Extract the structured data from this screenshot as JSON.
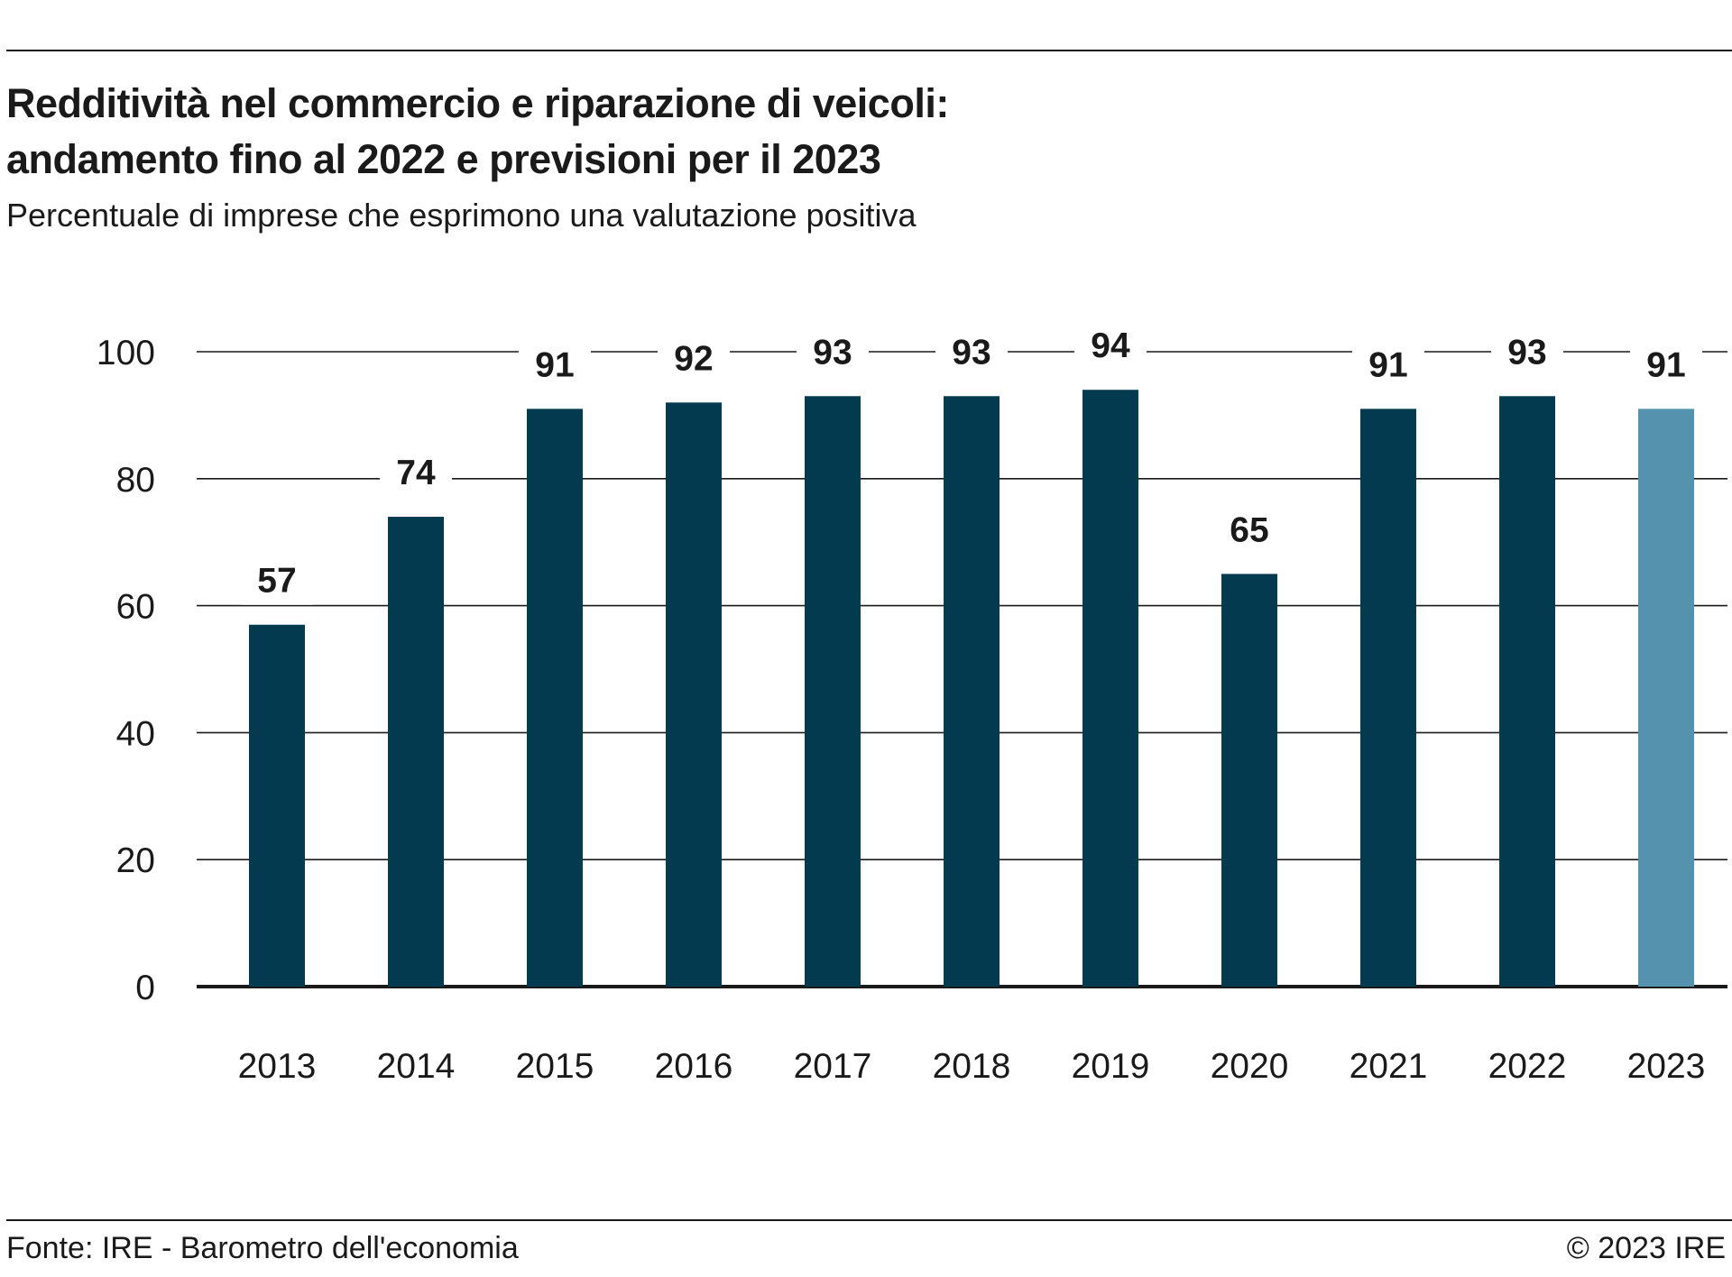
{
  "header": {
    "title_line1": "Redditività nel commercio e riparazione di veicoli:",
    "title_line2": "andamento fino al 2022 e previsioni per il 2023",
    "subtitle": "Percentuale di imprese che esprimono una valutazione positiva"
  },
  "footer": {
    "source": "Fonte: IRE - Barometro dell'economia",
    "copyright": "© 2023 IRE"
  },
  "colors": {
    "bar": "#033a50",
    "bar_forecast": "#5592ad",
    "text": "#1a1a1a",
    "grid": "#1a1a1a"
  },
  "chart_data": {
    "type": "bar",
    "title": "Redditività nel commercio e riparazione di veicoli: andamento fino al 2022 e previsioni per il 2023",
    "subtitle": "Percentuale di imprese che esprimono una valutazione positiva",
    "categories": [
      "2013",
      "2014",
      "2015",
      "2016",
      "2017",
      "2018",
      "2019",
      "2020",
      "2021",
      "2022",
      "2023"
    ],
    "values": [
      57,
      74,
      91,
      92,
      93,
      93,
      94,
      65,
      91,
      93,
      91
    ],
    "data_labels": [
      "57",
      "74",
      "91",
      "92",
      "93",
      "93",
      "94",
      "65",
      "91",
      "93",
      "91"
    ],
    "forecast_categories": [
      "2023"
    ],
    "xlabel": "",
    "ylabel": "",
    "ylim": [
      0,
      100
    ],
    "yticks": [
      0,
      20,
      40,
      60,
      80,
      100
    ],
    "ytick_labels": [
      "0",
      "20",
      "40",
      "60",
      "80",
      "100"
    ],
    "grid": true,
    "legend": false
  }
}
